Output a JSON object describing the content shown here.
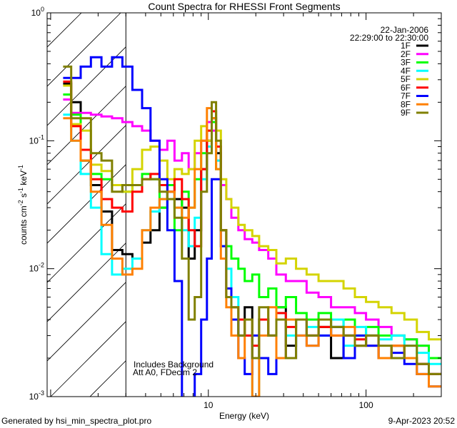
{
  "chart_data": {
    "type": "line",
    "title": "Count Spectra for RHESSI Front Segments",
    "xlabel": "Energy (keV)",
    "ylabel": {
      "base": "counts cm",
      "e1": "-2",
      "mid": " s",
      "e2": "-1",
      "mid2": " keV",
      "e3": "-1"
    },
    "xscale": "log",
    "yscale": "log",
    "xlim": [
      0.95,
      300
    ],
    "ylim": [
      0.001,
      1
    ],
    "xticks": [
      {
        "value": 10,
        "label": "10"
      },
      {
        "value": 100,
        "label": "100"
      }
    ],
    "yticks": [
      {
        "value": 1,
        "base": "10",
        "exp": "0"
      },
      {
        "value": 0.1,
        "base": "10",
        "exp": "-1"
      },
      {
        "value": 0.01,
        "base": "10",
        "exp": "-2"
      },
      {
        "value": 0.001,
        "base": "10",
        "exp": "-3"
      }
    ],
    "hatched_region_keV": [
      0.95,
      3.0
    ],
    "date": "22-Jan-2006",
    "time_range": "22:29:00 to 22:30:00",
    "legend_placement": "top-right",
    "annotations": [
      "Includes Background",
      "Att A0, FDecim 2"
    ],
    "bin_edges_keV": [
      1.2,
      1.35,
      1.55,
      1.8,
      2.1,
      2.45,
      2.85,
      3.3,
      3.8,
      4.3,
      4.9,
      5.5,
      6.1,
      6.8,
      7.5,
      8.2,
      9.0,
      9.8,
      10.5,
      11.2,
      12,
      13,
      14,
      15.5,
      17,
      19,
      21,
      24,
      27,
      31,
      36,
      42,
      50,
      60,
      72,
      85,
      100,
      120,
      145,
      175,
      210,
      250,
      300
    ],
    "series": [
      {
        "name": "1F",
        "color": "#000000",
        "values": [
          0.28,
          0.2,
          0.07,
          0.045,
          0.028,
          0.014,
          0.013,
          0.012,
          0.016,
          0.02,
          0.03,
          0.04,
          0.035,
          0.03,
          0.012,
          0.02,
          0.06,
          0.1,
          0.15,
          0.08,
          0.02,
          0.006,
          0.004,
          0.003,
          0.005,
          0.002,
          0.004,
          0.003,
          0.005,
          0.0025,
          0.004,
          0.003,
          0.0035,
          0.002,
          0.003,
          0.0025,
          0.003,
          0.002,
          0.0025,
          0.002,
          0.0018,
          0.0015
        ]
      },
      {
        "name": "2F",
        "color": "#ff00ff",
        "values": [
          0.21,
          0.165,
          0.165,
          0.16,
          0.155,
          0.15,
          0.14,
          0.13,
          0.12,
          0.1,
          0.085,
          0.1,
          0.07,
          0.08,
          0.06,
          0.08,
          0.1,
          0.14,
          0.12,
          0.07,
          0.045,
          0.035,
          0.025,
          0.02,
          0.017,
          0.016,
          0.014,
          0.012,
          0.009,
          0.008,
          0.008,
          0.0065,
          0.006,
          0.005,
          0.005,
          0.0045,
          0.004,
          0.0035,
          0.003,
          0.0028,
          0.0025,
          0.002
        ]
      },
      {
        "name": "3F",
        "color": "#00ff00",
        "values": [
          0.23,
          0.16,
          0.07,
          0.055,
          0.05,
          0.045,
          0.04,
          0.045,
          0.055,
          0.05,
          0.03,
          0.045,
          0.02,
          0.04,
          0.03,
          0.05,
          0.08,
          0.12,
          0.14,
          0.06,
          0.02,
          0.015,
          0.012,
          0.01,
          0.008,
          0.009,
          0.006,
          0.007,
          0.005,
          0.006,
          0.0045,
          0.004,
          0.0045,
          0.0035,
          0.004,
          0.003,
          0.0035,
          0.003,
          0.003,
          0.0028,
          0.0025,
          0.002
        ]
      },
      {
        "name": "4F",
        "color": "#00ffff",
        "values": [
          0.16,
          0.1,
          0.055,
          0.03,
          0.013,
          0.009,
          0.01,
          0.012,
          0.02,
          0.028,
          0.035,
          0.04,
          0.03,
          0.02,
          0.015,
          0.025,
          0.05,
          0.09,
          0.17,
          0.07,
          0.015,
          0.01,
          0.006,
          0.004,
          0.003,
          0.001,
          0.004,
          0.003,
          0.0045,
          0.003,
          0.004,
          0.0035,
          0.003,
          0.004,
          0.0025,
          0.0035,
          0.003,
          0.0028,
          0.003,
          0.0025,
          0.0022,
          0.0018
        ]
      },
      {
        "name": "5F",
        "color": "#d4d400",
        "values": [
          0.27,
          0.135,
          0.12,
          0.065,
          0.058,
          0.045,
          0.04,
          0.06,
          0.085,
          0.09,
          0.07,
          0.05,
          0.06,
          0.055,
          0.06,
          0.1,
          0.13,
          0.1,
          0.17,
          0.12,
          0.05,
          0.035,
          0.03,
          0.022,
          0.02,
          0.018,
          0.015,
          0.014,
          0.011,
          0.012,
          0.01,
          0.009,
          0.008,
          0.008,
          0.007,
          0.006,
          0.0055,
          0.005,
          0.0045,
          0.004,
          0.0032,
          0.0028
        ]
      },
      {
        "name": "6F",
        "color": "#ff0000",
        "values": [
          0.29,
          0.13,
          0.085,
          0.05,
          0.035,
          0.03,
          0.028,
          0.04,
          0.05,
          0.055,
          0.045,
          0.04,
          0.05,
          0.035,
          0.02,
          0.015,
          0.06,
          0.12,
          0.17,
          0.09,
          0.02,
          0.006,
          0.005,
          0.004,
          0.003,
          0.0025,
          0.004,
          0.003,
          0.0045,
          0.0035,
          0.004,
          0.003,
          0.0035,
          0.003,
          0.003,
          0.0028,
          0.0025,
          0.002,
          0.0025,
          0.002,
          0.0018,
          0.0015
        ]
      },
      {
        "name": "7F",
        "color": "#0000ff",
        "values": [
          0.31,
          0.31,
          0.38,
          0.45,
          0.38,
          0.45,
          0.38,
          0.25,
          0.18,
          0.1,
          0.05,
          0.02,
          0.008,
          0.0005,
          0.0005,
          0.0015,
          0.004,
          0.012,
          0.05,
          0.05,
          0.015,
          0.007,
          0.004,
          0.002,
          0.0015,
          0.003,
          0.002,
          0.0015,
          0.004,
          0.002,
          0.003,
          0.0025,
          0.003,
          0.0035,
          0.002,
          0.003,
          0.0025,
          0.002,
          0.0022,
          0.0018,
          0.0015,
          0.0012
        ]
      },
      {
        "name": "8F",
        "color": "#ff8000",
        "values": [
          0.15,
          0.1,
          0.07,
          0.04,
          0.022,
          0.012,
          0.009,
          0.01,
          0.02,
          0.03,
          0.035,
          0.04,
          0.03,
          0.025,
          0.03,
          0.06,
          0.1,
          0.18,
          0.15,
          0.06,
          0.012,
          0.005,
          0.003,
          0.002,
          0.004,
          0.001,
          0.003,
          0.005,
          0.002,
          0.004,
          0.003,
          0.0025,
          0.004,
          0.003,
          0.0035,
          0.0025,
          0.003,
          0.002,
          0.0025,
          0.002,
          0.0015,
          0.0012
        ]
      },
      {
        "name": "9F",
        "color": "#808000",
        "values": [
          0.38,
          0.15,
          0.15,
          0.08,
          0.07,
          0.04,
          0.045,
          0.045,
          0.05,
          0.05,
          0.04,
          0.035,
          0.025,
          0.012,
          0.004,
          0.006,
          0.04,
          0.08,
          0.2,
          0.1,
          0.02,
          0.006,
          0.005,
          0.003,
          0.004,
          0.002,
          0.005,
          0.003,
          0.004,
          0.002,
          0.004,
          0.003,
          0.004,
          0.0035,
          0.003,
          0.0025,
          0.003,
          0.0025,
          0.002,
          0.0025,
          0.0018,
          0.0015
        ]
      }
    ]
  },
  "footer": {
    "generated_by": "Generated by hsi_min_spectra_plot.pro",
    "timestamp": "9-Apr-2023 20:52"
  }
}
